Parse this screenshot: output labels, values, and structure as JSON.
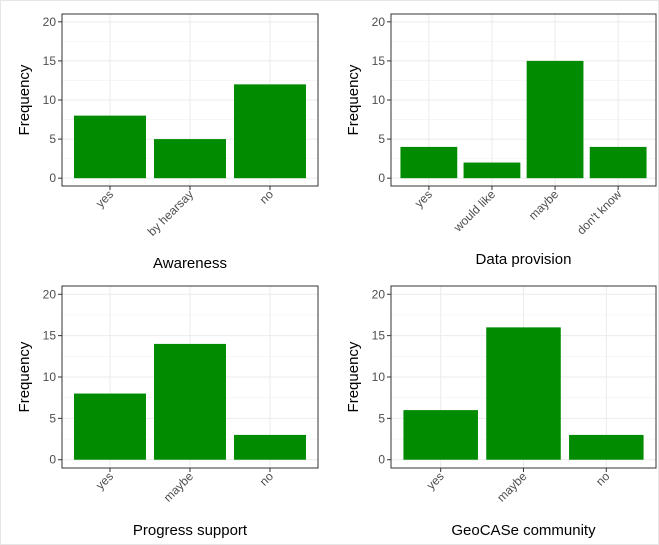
{
  "chart_data": [
    {
      "type": "bar",
      "xlabel": "Awareness",
      "ylabel": "Frequency",
      "categories": [
        "yes",
        "by hearsay",
        "no"
      ],
      "values": [
        8,
        5,
        12
      ],
      "ylim": [
        -1,
        21
      ],
      "yticks": [
        0,
        5,
        10,
        15,
        20
      ],
      "bar_color": "#008b00",
      "grid": true
    },
    {
      "type": "bar",
      "xlabel": "Data provision",
      "ylabel": "Frequency",
      "categories": [
        "yes",
        "would like",
        "maybe",
        "don't know"
      ],
      "values": [
        4,
        2,
        15,
        4
      ],
      "ylim": [
        -1,
        21
      ],
      "yticks": [
        0,
        5,
        10,
        15,
        20
      ],
      "bar_color": "#008b00",
      "grid": true
    },
    {
      "type": "bar",
      "xlabel": "Progress support",
      "ylabel": "Frequency",
      "categories": [
        "yes",
        "maybe",
        "no"
      ],
      "values": [
        8,
        14,
        3
      ],
      "ylim": [
        -1,
        21
      ],
      "yticks": [
        0,
        5,
        10,
        15,
        20
      ],
      "bar_color": "#008b00",
      "grid": true
    },
    {
      "type": "bar",
      "xlabel": "GeoCASe community",
      "ylabel": "Frequency",
      "categories": [
        "yes",
        "maybe",
        "no"
      ],
      "values": [
        6,
        16,
        3
      ],
      "ylim": [
        -1,
        21
      ],
      "yticks": [
        0,
        5,
        10,
        15,
        20
      ],
      "bar_color": "#008b00",
      "grid": true
    }
  ]
}
